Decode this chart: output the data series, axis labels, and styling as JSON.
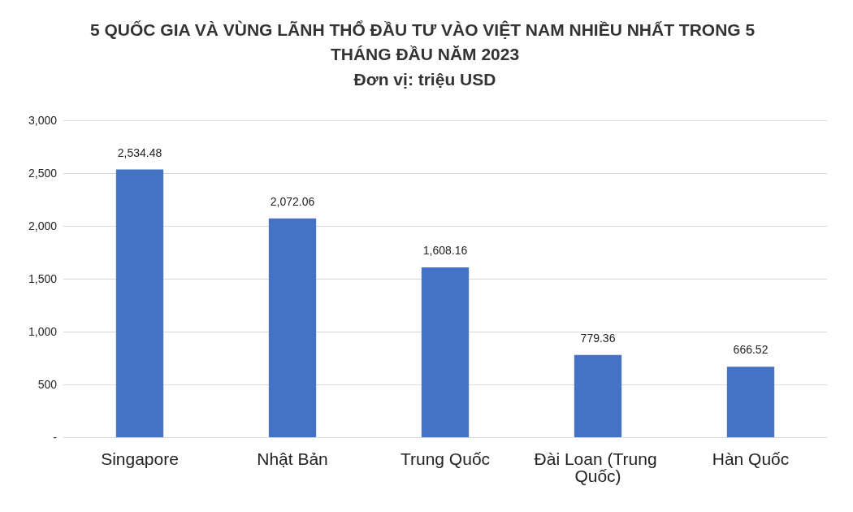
{
  "chart_data": {
    "type": "bar",
    "title": "5 QUỐC GIA VÀ VÙNG LÃNH THỔ ĐẦU TƯ VÀO VIỆT NAM NHIỀU NHẤT TRONG 5 THÁNG ĐẦU NĂM 2023",
    "subtitle": "Đơn vị: triệu USD",
    "categories": [
      "Singapore",
      "Nhật Bản",
      "Trung Quốc",
      "Đài Loan (Trung Quốc)",
      "Hàn Quốc"
    ],
    "values": [
      2534.48,
      2072.06,
      1608.16,
      779.36,
      666.52
    ],
    "value_labels": [
      "2,534.48",
      "2,072.06",
      "1,608.16",
      "779.36",
      "666.52"
    ],
    "color": "#4472c4",
    "ylim": [
      0,
      3000
    ],
    "yticks": [
      {
        "value": 0,
        "label": "-"
      },
      500,
      {
        "value": 1000,
        "label": "1,000"
      },
      {
        "value": 1500,
        "label": "1,500"
      },
      {
        "value": 2000,
        "label": "2,000"
      },
      {
        "value": 2500,
        "label": "2,500"
      },
      {
        "value": 3000,
        "label": "3,000"
      }
    ],
    "grid": "y"
  }
}
